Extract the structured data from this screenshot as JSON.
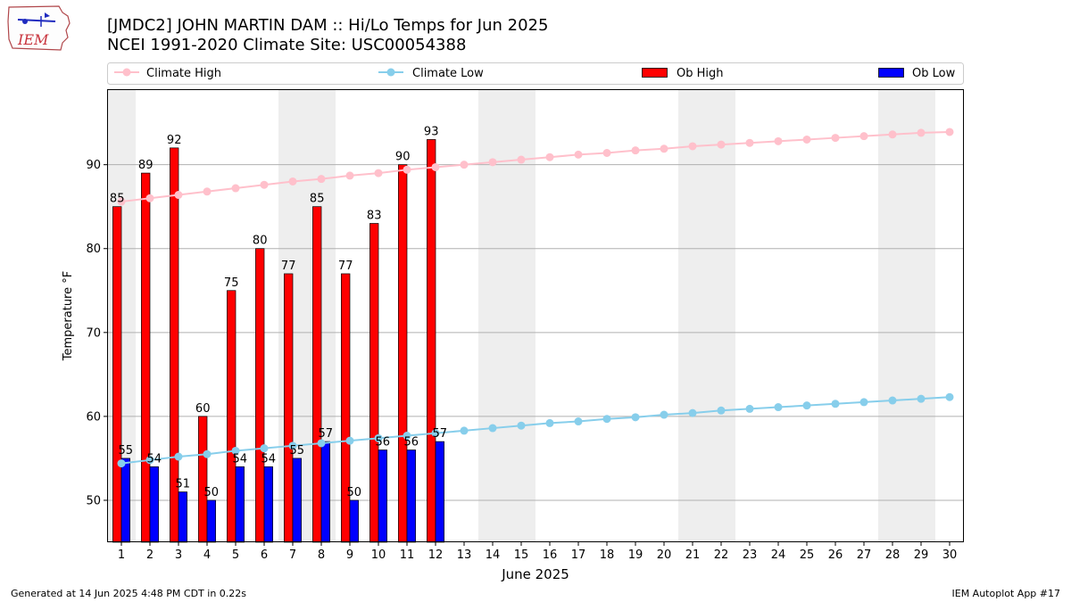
{
  "header": {
    "title": "[JMDC2] JOHN MARTIN DAM :: Hi/Lo Temps for Jun 2025",
    "subtitle": "NCEI 1991-2020 Climate Site: USC00054388",
    "logo_text": "IEM"
  },
  "footer": {
    "left": "Generated at 14 Jun 2025 4:48 PM CDT in 0.22s",
    "right": "IEM Autoplot App #17"
  },
  "chart_data": {
    "type": "bar",
    "xlabel": "June 2025",
    "ylabel": "Temperature °F",
    "xlim": [
      0.5,
      30.5
    ],
    "ylim": [
      45,
      99
    ],
    "yticks": [
      50,
      60,
      70,
      80,
      90
    ],
    "x": [
      1,
      2,
      3,
      4,
      5,
      6,
      7,
      8,
      9,
      10,
      11,
      12,
      13,
      14,
      15,
      16,
      17,
      18,
      19,
      20,
      21,
      22,
      23,
      24,
      25,
      26,
      27,
      28,
      29,
      30
    ],
    "grid": "horizontal",
    "weekend_shading": [
      [
        1,
        1
      ],
      [
        7,
        8
      ],
      [
        14,
        15
      ],
      [
        21,
        22
      ],
      [
        28,
        29
      ]
    ],
    "legend": {
      "placement": "top",
      "items": [
        {
          "label": "Climate High",
          "kind": "line",
          "color": "#ffc0cb"
        },
        {
          "label": "Climate Low",
          "kind": "line",
          "color": "#87ceeb"
        },
        {
          "label": "Ob High",
          "kind": "bar",
          "color": "#ff0000"
        },
        {
          "label": "Ob Low",
          "kind": "bar",
          "color": "#0000ff"
        }
      ]
    },
    "series": [
      {
        "name": "Ob High",
        "kind": "bar",
        "color": "#ff0000",
        "offset": -1,
        "x": [
          1,
          2,
          3,
          4,
          5,
          6,
          7,
          8,
          9,
          10,
          11,
          12
        ],
        "values": [
          85,
          89,
          92,
          60,
          75,
          80,
          77,
          85,
          77,
          83,
          90,
          93
        ]
      },
      {
        "name": "Ob Low",
        "kind": "bar",
        "color": "#0000ff",
        "offset": 1,
        "x": [
          1,
          2,
          3,
          4,
          5,
          6,
          7,
          8,
          9,
          10,
          11,
          12
        ],
        "values": [
          55,
          54,
          51,
          50,
          54,
          54,
          55,
          57,
          50,
          56,
          56,
          57
        ]
      },
      {
        "name": "Climate High",
        "kind": "line",
        "color": "#ffc0cb",
        "values": [
          85.6,
          86.0,
          86.4,
          86.8,
          87.2,
          87.6,
          88.0,
          88.3,
          88.7,
          89.0,
          89.4,
          89.7,
          90.0,
          90.3,
          90.6,
          90.9,
          91.2,
          91.4,
          91.7,
          91.9,
          92.2,
          92.4,
          92.6,
          92.8,
          93.0,
          93.2,
          93.4,
          93.6,
          93.8,
          93.9
        ]
      },
      {
        "name": "Climate Low",
        "kind": "line",
        "color": "#87ceeb",
        "values": [
          54.4,
          54.8,
          55.2,
          55.5,
          55.9,
          56.2,
          56.5,
          56.8,
          57.1,
          57.4,
          57.7,
          58.0,
          58.3,
          58.6,
          58.9,
          59.2,
          59.4,
          59.7,
          59.9,
          60.2,
          60.4,
          60.7,
          60.9,
          61.1,
          61.3,
          61.5,
          61.7,
          61.9,
          62.1,
          62.3
        ]
      }
    ]
  }
}
